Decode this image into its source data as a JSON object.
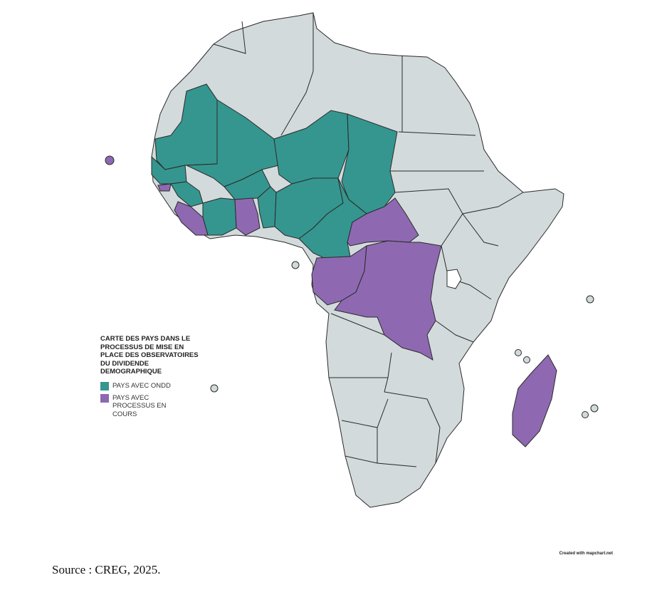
{
  "legend": {
    "title": "CARTE DES PAYS DANS LE PROCESSUS DE MISE EN PLACE DES OBSERVATOIRES DU DIVIDENDE DEMOGRAPHIQUE",
    "items": [
      {
        "label": "PAYS AVEC ONDD",
        "color": "#35968F"
      },
      {
        "label": "PAYS AVEC PROCESSUS EN COURS",
        "color": "#8E69B1"
      }
    ]
  },
  "base_color": "#D3DADC",
  "border_color": "#2A2A2A",
  "credit": "Created with mapchart.net",
  "source": "Source : CREG, 2025."
}
